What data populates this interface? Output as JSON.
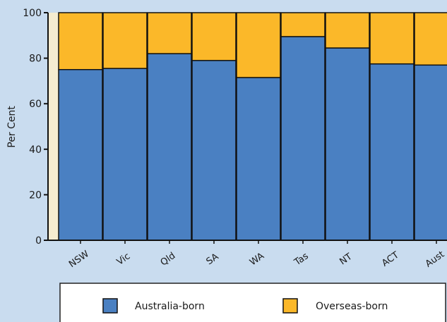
{
  "chart_data": {
    "type": "bar",
    "stacked": true,
    "categories": [
      "NSW",
      "Vic",
      "Qld",
      "SA",
      "WA",
      "Tas",
      "NT",
      "ACT",
      "Aust"
    ],
    "series": [
      {
        "name": "Australia-born",
        "values": [
          75,
          75.5,
          82,
          79,
          71.5,
          89.5,
          84.5,
          77.5,
          77
        ]
      },
      {
        "name": "Overseas-born",
        "values": [
          25,
          24.5,
          18,
          21,
          28.5,
          10.5,
          15.5,
          22.5,
          23
        ]
      }
    ],
    "ylabel": "Per Cent",
    "xlabel": "",
    "ylim": [
      0,
      100
    ],
    "yticks": [
      0,
      20,
      40,
      60,
      80,
      100
    ],
    "grid": false,
    "legend_placement": "bottom",
    "colors": {
      "Australia-born": "#4a80c2",
      "Overseas-born": "#fbb829",
      "plot_background": "#f5ecd0",
      "page_background": "#c9dcef"
    }
  }
}
